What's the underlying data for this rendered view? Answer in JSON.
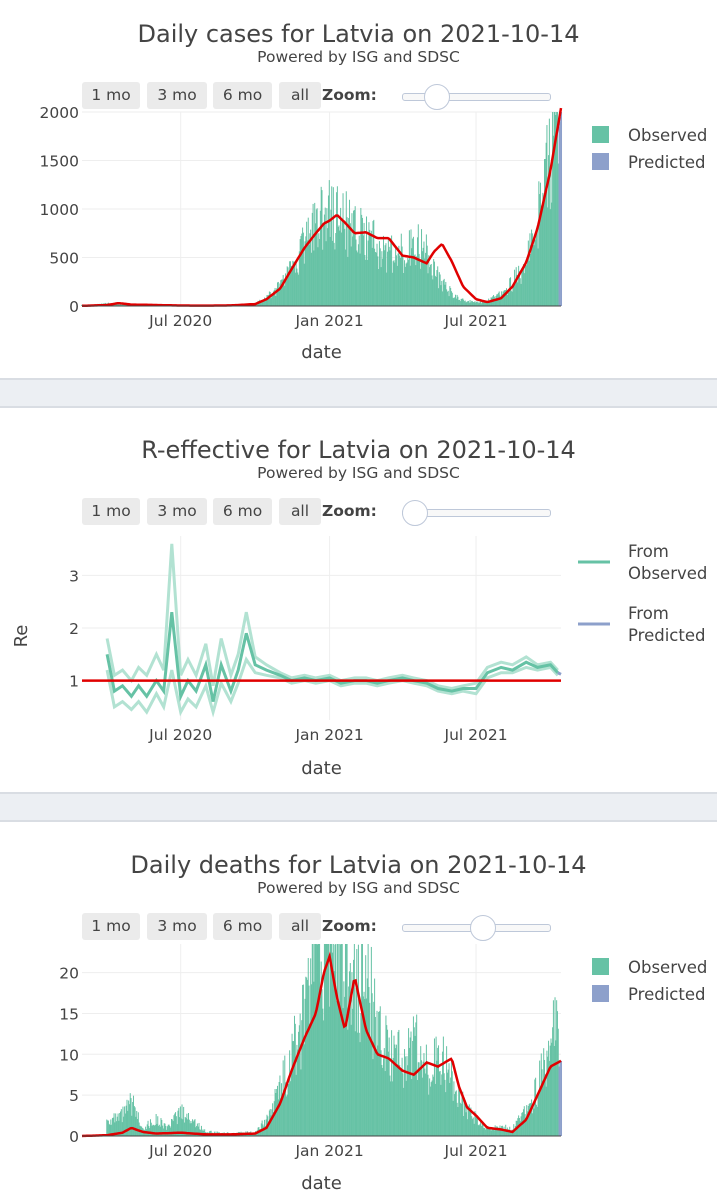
{
  "panels": [
    {
      "title": "Daily cases for Latvia on 2021-10-14",
      "subtitle": "Powered by ISG and SDSC",
      "buttons": [
        "1 mo",
        "3 mo",
        "6 mo",
        "all"
      ],
      "zoom_label": "Zoom:",
      "zoom_slider_value": 0.18
    },
    {
      "title": "R-effective for Latvia on 2021-10-14",
      "subtitle": "Powered by ISG and SDSC",
      "buttons": [
        "1 mo",
        "3 mo",
        "6 mo",
        "all"
      ],
      "zoom_label": "Zoom:",
      "zoom_slider_value": 0.0
    },
    {
      "title": "Daily deaths for Latvia on 2021-10-14",
      "subtitle": "Powered by ISG and SDSC",
      "buttons": [
        "1 mo",
        "3 mo",
        "6 mo",
        "all"
      ],
      "zoom_label": "Zoom:",
      "zoom_slider_value": 0.55
    }
  ],
  "colors": {
    "observed": "#66c2a5",
    "predicted": "#8da0cb",
    "fit_line": "#e00000",
    "re_observed": "#66c2a5",
    "re_band": "#b2e2d2"
  },
  "chart_data": [
    {
      "type": "bar",
      "title": "Daily cases for Latvia on 2021-10-14",
      "xlabel": "date",
      "ylabel": "",
      "x_range": [
        "2020-03-01",
        "2021-10-14"
      ],
      "ylim": [
        0,
        2000
      ],
      "yticks": [
        "0",
        "500",
        "1000",
        "1500",
        "2000"
      ],
      "xticks": [
        {
          "date": "2020-07-01",
          "label": "Jul 2020"
        },
        {
          "date": "2021-01-01",
          "label": "Jan 2021"
        },
        {
          "date": "2021-07-01",
          "label": "Jul 2021"
        }
      ],
      "legend": [
        "Observed",
        "Predicted"
      ],
      "legend_position": "top-right",
      "series": [
        {
          "name": "Observed",
          "kind": "bar",
          "dates": [
            "2020-03-15",
            "2020-04-01",
            "2020-05-01",
            "2020-06-01",
            "2020-07-01",
            "2020-08-01",
            "2020-09-01",
            "2020-10-01",
            "2020-10-15",
            "2020-11-01",
            "2020-11-15",
            "2020-12-01",
            "2020-12-15",
            "2021-01-01",
            "2021-01-15",
            "2021-02-01",
            "2021-02-15",
            "2021-03-01",
            "2021-03-15",
            "2021-04-01",
            "2021-04-15",
            "2021-05-01",
            "2021-05-15",
            "2021-06-01",
            "2021-06-15",
            "2021-07-01",
            "2021-07-15",
            "2021-08-01",
            "2021-08-15",
            "2021-09-01",
            "2021-09-15",
            "2021-10-01",
            "2021-10-10"
          ],
          "values": [
            12,
            25,
            15,
            8,
            5,
            6,
            8,
            25,
            90,
            200,
            400,
            650,
            850,
            1000,
            900,
            750,
            700,
            600,
            550,
            550,
            650,
            550,
            300,
            120,
            60,
            35,
            55,
            120,
            250,
            450,
            900,
            1700,
            1950
          ]
        },
        {
          "name": "Predicted",
          "kind": "bar",
          "dates": [
            "2021-10-11",
            "2021-10-12",
            "2021-10-13",
            "2021-10-14"
          ],
          "values": [
            1850,
            1900,
            1950,
            2000
          ]
        },
        {
          "name": "fit",
          "kind": "line",
          "dates": [
            "2020-03-01",
            "2020-04-01",
            "2020-04-15",
            "2020-05-01",
            "2020-06-01",
            "2020-07-01",
            "2020-08-01",
            "2020-09-01",
            "2020-10-01",
            "2020-10-15",
            "2020-11-01",
            "2020-11-15",
            "2020-12-01",
            "2020-12-15",
            "2020-12-25",
            "2021-01-01",
            "2021-01-10",
            "2021-01-20",
            "2021-02-01",
            "2021-02-15",
            "2021-03-01",
            "2021-03-15",
            "2021-04-01",
            "2021-04-15",
            "2021-05-01",
            "2021-05-10",
            "2021-05-20",
            "2021-06-01",
            "2021-06-15",
            "2021-07-01",
            "2021-07-15",
            "2021-08-01",
            "2021-08-15",
            "2021-09-01",
            "2021-09-15",
            "2021-10-01",
            "2021-10-14"
          ],
          "values": [
            2,
            10,
            30,
            15,
            10,
            5,
            4,
            6,
            20,
            70,
            180,
            380,
            600,
            750,
            850,
            880,
            940,
            860,
            750,
            760,
            700,
            700,
            520,
            500,
            440,
            560,
            640,
            460,
            200,
            70,
            40,
            80,
            200,
            450,
            800,
            1400,
            2040
          ]
        }
      ]
    },
    {
      "type": "line",
      "title": "R-effective for Latvia on 2021-10-14",
      "xlabel": "date",
      "ylabel": "Re",
      "x_range": [
        "2020-03-01",
        "2021-10-14"
      ],
      "ylim": [
        0.25,
        3.75
      ],
      "yticks": [
        "1",
        "2",
        "3"
      ],
      "xticks": [
        {
          "date": "2020-07-01",
          "label": "Jul 2020"
        },
        {
          "date": "2021-01-01",
          "label": "Jan 2021"
        },
        {
          "date": "2021-07-01",
          "label": "Jul 2021"
        }
      ],
      "legend": [
        "From Observed",
        "From Predicted"
      ],
      "legend_position": "top-right",
      "reference_line": 1,
      "series": [
        {
          "name": "From Observed",
          "dates": [
            "2020-04-01",
            "2020-04-10",
            "2020-04-20",
            "2020-05-01",
            "2020-05-10",
            "2020-05-20",
            "2020-06-01",
            "2020-06-10",
            "2020-06-20",
            "2020-07-01",
            "2020-07-10",
            "2020-07-20",
            "2020-08-01",
            "2020-08-10",
            "2020-08-20",
            "2020-09-01",
            "2020-09-10",
            "2020-09-20",
            "2020-10-01",
            "2020-10-15",
            "2020-11-01",
            "2020-11-15",
            "2020-12-01",
            "2020-12-15",
            "2021-01-01",
            "2021-01-15",
            "2021-02-01",
            "2021-02-15",
            "2021-03-01",
            "2021-03-15",
            "2021-04-01",
            "2021-04-15",
            "2021-05-01",
            "2021-05-15",
            "2021-06-01",
            "2021-06-15",
            "2021-07-01",
            "2021-07-15",
            "2021-08-01",
            "2021-08-15",
            "2021-09-01",
            "2021-09-15",
            "2021-10-01",
            "2021-10-10"
          ],
          "values": [
            1.5,
            0.8,
            0.9,
            0.7,
            0.9,
            0.7,
            1.0,
            0.8,
            2.3,
            0.7,
            1.0,
            0.8,
            1.3,
            0.6,
            1.3,
            0.8,
            1.2,
            1.9,
            1.3,
            1.2,
            1.1,
            1.0,
            1.05,
            1.0,
            1.05,
            0.95,
            1.0,
            1.0,
            0.95,
            1.0,
            1.05,
            1.0,
            0.95,
            0.85,
            0.8,
            0.85,
            0.85,
            1.15,
            1.25,
            1.2,
            1.35,
            1.25,
            1.3,
            1.15
          ],
          "lower": [
            1.2,
            0.5,
            0.6,
            0.45,
            0.6,
            0.4,
            0.75,
            0.5,
            1.2,
            0.4,
            0.65,
            0.5,
            0.9,
            0.4,
            0.95,
            0.6,
            0.95,
            1.4,
            1.15,
            1.1,
            1.05,
            0.95,
            1.0,
            0.95,
            1.0,
            0.9,
            0.95,
            0.95,
            0.9,
            0.95,
            1.0,
            0.95,
            0.9,
            0.8,
            0.75,
            0.8,
            0.75,
            1.05,
            1.15,
            1.15,
            1.25,
            1.2,
            1.25,
            1.1
          ],
          "upper": [
            1.8,
            1.1,
            1.2,
            1.0,
            1.25,
            1.1,
            1.5,
            1.2,
            3.6,
            1.1,
            1.4,
            1.1,
            1.7,
            0.9,
            1.8,
            1.1,
            1.5,
            2.3,
            1.45,
            1.3,
            1.15,
            1.05,
            1.1,
            1.05,
            1.1,
            1.0,
            1.05,
            1.05,
            1.0,
            1.05,
            1.1,
            1.05,
            1.0,
            0.9,
            0.85,
            0.9,
            0.95,
            1.25,
            1.35,
            1.3,
            1.45,
            1.3,
            1.35,
            1.2
          ]
        },
        {
          "name": "From Predicted",
          "dates": [
            "2021-10-10",
            "2021-10-14"
          ],
          "values": [
            1.15,
            1.12
          ]
        }
      ]
    },
    {
      "type": "bar",
      "title": "Daily deaths for Latvia on 2021-10-14",
      "xlabel": "date",
      "ylabel": "",
      "x_range": [
        "2020-03-01",
        "2021-10-14"
      ],
      "ylim": [
        0,
        23.5
      ],
      "yticks": [
        "0",
        "5",
        "10",
        "15",
        "20"
      ],
      "xticks": [
        {
          "date": "2020-07-01",
          "label": "Jul 2020"
        },
        {
          "date": "2021-01-01",
          "label": "Jan 2021"
        },
        {
          "date": "2021-07-01",
          "label": "Jul 2021"
        }
      ],
      "legend": [
        "Observed",
        "Predicted"
      ],
      "legend_position": "top-right",
      "series": [
        {
          "name": "Observed",
          "kind": "bar",
          "dates": [
            "2020-04-15",
            "2020-05-01",
            "2020-05-15",
            "2020-06-01",
            "2020-06-15",
            "2020-07-01",
            "2020-08-01",
            "2020-09-01",
            "2020-10-01",
            "2020-10-15",
            "2020-11-01",
            "2020-11-15",
            "2020-12-01",
            "2020-12-15",
            "2021-01-01",
            "2021-01-15",
            "2021-02-01",
            "2021-02-15",
            "2021-03-01",
            "2021-03-15",
            "2021-04-01",
            "2021-04-15",
            "2021-05-01",
            "2021-05-15",
            "2021-06-01",
            "2021-06-15",
            "2021-07-01",
            "2021-07-15",
            "2021-08-01",
            "2021-08-15",
            "2021-09-01",
            "2021-09-15",
            "2021-10-01",
            "2021-10-10"
          ],
          "values": [
            2,
            4,
            1,
            2,
            1,
            3,
            0.5,
            0.3,
            0.5,
            2,
            6,
            10,
            14,
            23,
            23,
            23,
            18,
            20,
            12,
            10,
            9,
            12,
            8,
            10,
            7,
            4,
            2,
            1,
            1,
            1,
            3,
            6,
            12,
            14
          ]
        },
        {
          "name": "Predicted",
          "kind": "bar",
          "dates": [
            "2021-10-11",
            "2021-10-12",
            "2021-10-13",
            "2021-10-14"
          ],
          "values": [
            8.5,
            9.0,
            9.1,
            9.2
          ]
        },
        {
          "name": "fit",
          "kind": "line",
          "dates": [
            "2020-03-01",
            "2020-04-01",
            "2020-04-20",
            "2020-05-01",
            "2020-05-15",
            "2020-06-01",
            "2020-07-01",
            "2020-08-01",
            "2020-09-01",
            "2020-10-01",
            "2020-10-15",
            "2020-11-01",
            "2020-11-15",
            "2020-12-01",
            "2020-12-15",
            "2020-12-25",
            "2021-01-01",
            "2021-01-10",
            "2021-01-20",
            "2021-02-01",
            "2021-02-15",
            "2021-03-01",
            "2021-03-15",
            "2021-04-01",
            "2021-04-15",
            "2021-05-01",
            "2021-05-15",
            "2021-06-01",
            "2021-06-10",
            "2021-06-20",
            "2021-07-01",
            "2021-07-15",
            "2021-08-01",
            "2021-08-15",
            "2021-09-01",
            "2021-09-15",
            "2021-10-01",
            "2021-10-14"
          ],
          "values": [
            0,
            0.1,
            0.4,
            1.0,
            0.5,
            0.3,
            0.4,
            0.2,
            0.2,
            0.3,
            1.0,
            4.0,
            8.0,
            12.0,
            15.0,
            20.0,
            22.0,
            17.0,
            13.0,
            19.5,
            13.0,
            10.0,
            9.5,
            8.0,
            7.5,
            9.0,
            8.5,
            9.5,
            6.0,
            3.5,
            2.5,
            1.0,
            0.8,
            0.5,
            2.0,
            5.0,
            8.5,
            9.2
          ]
        }
      ]
    }
  ]
}
